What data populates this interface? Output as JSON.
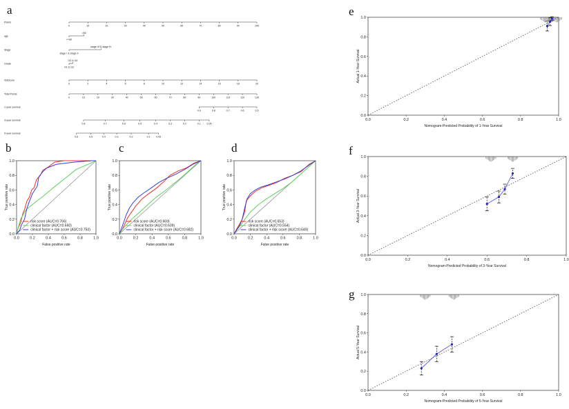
{
  "panel_labels": [
    "a",
    "b",
    "c",
    "d",
    "e",
    "f",
    "g"
  ],
  "chart_data": [
    {
      "panel": "a",
      "type": "nomogram",
      "rows": [
        {
          "name": "Points",
          "kind": "scale",
          "range": [
            0,
            100
          ],
          "ticks": [
            "0",
            "10",
            "20",
            "30",
            "40",
            "50",
            "60",
            "70",
            "80",
            "90",
            "100"
          ]
        },
        {
          "name": "age",
          "kind": "factor",
          "levels": [
            {
              "label": ">60",
              "points": 8
            },
            {
              "label": "<=60",
              "points": 0
            }
          ]
        },
        {
          "name": "Stage",
          "kind": "factor",
          "levels": [
            {
              "label": "stage III & stage IV",
              "points": 17
            },
            {
              "label": "stage I & stage II",
              "points": 0
            }
          ]
        },
        {
          "name": "Grade",
          "kind": "factor",
          "levels": [
            {
              "label": "G3 & G4",
              "points": 2
            },
            {
              "label": "G1 & G2",
              "points": 0
            }
          ]
        },
        {
          "name": "riskScore",
          "kind": "scale",
          "range": [
            0,
            20
          ],
          "ticks": [
            "0",
            "2",
            "4",
            "6",
            "8",
            "10",
            "12",
            "14",
            "16",
            "18",
            "20"
          ]
        },
        {
          "name": "Total Points",
          "kind": "scale",
          "range": [
            0,
            130
          ],
          "ticks": [
            "0",
            "10",
            "20",
            "30",
            "40",
            "50",
            "60",
            "70",
            "80",
            "90",
            "100",
            "110",
            "120",
            "130"
          ]
        },
        {
          "name": "1-year survival",
          "kind": "prob",
          "ticks": [
            "0.9",
            "0.8",
            "0.7",
            "0.6",
            "0.5"
          ],
          "points_at": [
            90,
            100,
            110,
            120,
            130
          ]
        },
        {
          "name": "3-year survival",
          "kind": "prob",
          "ticks": [
            "0.8",
            "0.7",
            "0.6",
            "0.5",
            "0.4",
            "0.3",
            "0.2",
            "0.1",
            "0.05"
          ],
          "points_at": [
            10,
            25,
            38,
            49,
            60,
            70,
            80,
            90,
            97
          ]
        },
        {
          "name": "5-year survival",
          "kind": "prob",
          "ticks": [
            "0.6",
            "0.5",
            "0.4",
            "0.3",
            "0.2",
            "0.1",
            "0.05"
          ],
          "points_at": [
            5,
            15,
            24,
            33,
            43,
            55,
            62
          ]
        }
      ]
    },
    {
      "panel": "b",
      "type": "roc",
      "xlabel": "False positive rate",
      "ylabel": "True positive rate",
      "ticks": [
        "0.0",
        "0.2",
        "0.4",
        "0.6",
        "0.8",
        "1.0"
      ],
      "series": [
        {
          "name": "risk score (AUC=0.766)",
          "color": "#e8302c",
          "points": [
            [
              0,
              0
            ],
            [
              0.02,
              0.08
            ],
            [
              0.05,
              0.15
            ],
            [
              0.08,
              0.28
            ],
            [
              0.1,
              0.33
            ],
            [
              0.13,
              0.45
            ],
            [
              0.16,
              0.5
            ],
            [
              0.19,
              0.6
            ],
            [
              0.22,
              0.63
            ],
            [
              0.25,
              0.74
            ],
            [
              0.3,
              0.8
            ],
            [
              0.33,
              0.87
            ],
            [
              0.38,
              0.9
            ],
            [
              0.48,
              0.98
            ],
            [
              0.6,
              1
            ],
            [
              1,
              1
            ]
          ]
        },
        {
          "name": "clinical factor (AUC=0.660)",
          "color": "#5cd15c",
          "points": [
            [
              0,
              0
            ],
            [
              0.05,
              0.2
            ],
            [
              0.12,
              0.33
            ],
            [
              0.22,
              0.42
            ],
            [
              0.32,
              0.5
            ],
            [
              0.45,
              0.62
            ],
            [
              0.6,
              0.75
            ],
            [
              0.75,
              0.88
            ],
            [
              0.9,
              0.95
            ],
            [
              1,
              1
            ]
          ]
        },
        {
          "name": "clinical factor + risk score (AUC=0.750)",
          "color": "#3a3ad8",
          "points": [
            [
              0,
              0
            ],
            [
              0.04,
              0.05
            ],
            [
              0.06,
              0.12
            ],
            [
              0.1,
              0.2
            ],
            [
              0.13,
              0.35
            ],
            [
              0.16,
              0.44
            ],
            [
              0.2,
              0.55
            ],
            [
              0.23,
              0.6
            ],
            [
              0.26,
              0.65
            ],
            [
              0.28,
              0.78
            ],
            [
              0.33,
              0.85
            ],
            [
              0.38,
              0.9
            ],
            [
              0.5,
              0.95
            ],
            [
              0.72,
              0.98
            ],
            [
              0.95,
              1
            ],
            [
              1,
              1
            ]
          ]
        }
      ]
    },
    {
      "panel": "c",
      "type": "roc",
      "xlabel": "False positive rate",
      "ylabel": "True positive rate",
      "ticks": [
        "0.0",
        "0.2",
        "0.4",
        "0.6",
        "0.8",
        "1.0"
      ],
      "series": [
        {
          "name": "risk score (AUC=0.669)",
          "color": "#e8302c",
          "points": [
            [
              0,
              0
            ],
            [
              0.03,
              0.05
            ],
            [
              0.06,
              0.12
            ],
            [
              0.1,
              0.22
            ],
            [
              0.15,
              0.3
            ],
            [
              0.2,
              0.38
            ],
            [
              0.28,
              0.48
            ],
            [
              0.36,
              0.55
            ],
            [
              0.45,
              0.62
            ],
            [
              0.55,
              0.72
            ],
            [
              0.62,
              0.8
            ],
            [
              0.72,
              0.86
            ],
            [
              0.82,
              0.9
            ],
            [
              0.92,
              0.97
            ],
            [
              1,
              1
            ]
          ]
        },
        {
          "name": "clinical factor (AUC=0.609)",
          "color": "#5cd15c",
          "points": [
            [
              0,
              0
            ],
            [
              0.05,
              0.08
            ],
            [
              0.15,
              0.2
            ],
            [
              0.25,
              0.3
            ],
            [
              0.35,
              0.4
            ],
            [
              0.45,
              0.5
            ],
            [
              0.55,
              0.58
            ],
            [
              0.65,
              0.67
            ],
            [
              0.75,
              0.76
            ],
            [
              0.85,
              0.86
            ],
            [
              0.95,
              0.96
            ],
            [
              1,
              1
            ]
          ]
        },
        {
          "name": "clinical factor + risk score (AUC=0.682)",
          "color": "#3a3ad8",
          "points": [
            [
              0,
              0
            ],
            [
              0.02,
              0.06
            ],
            [
              0.05,
              0.15
            ],
            [
              0.08,
              0.25
            ],
            [
              0.12,
              0.35
            ],
            [
              0.17,
              0.43
            ],
            [
              0.23,
              0.5
            ],
            [
              0.3,
              0.56
            ],
            [
              0.38,
              0.62
            ],
            [
              0.48,
              0.7
            ],
            [
              0.58,
              0.76
            ],
            [
              0.7,
              0.82
            ],
            [
              0.8,
              0.88
            ],
            [
              0.9,
              0.95
            ],
            [
              1,
              1
            ]
          ]
        }
      ]
    },
    {
      "panel": "d",
      "type": "roc",
      "xlabel": "False positive rate",
      "ylabel": "True positive rate",
      "ticks": [
        "0.0",
        "0.2",
        "0.4",
        "0.6",
        "0.8",
        "1.0"
      ],
      "series": [
        {
          "name": "risk score (AUC=0.653)",
          "color": "#e8302c",
          "points": [
            [
              0,
              0
            ],
            [
              0.03,
              0.06
            ],
            [
              0.07,
              0.14
            ],
            [
              0.1,
              0.2
            ],
            [
              0.13,
              0.3
            ],
            [
              0.15,
              0.45
            ],
            [
              0.2,
              0.52
            ],
            [
              0.26,
              0.58
            ],
            [
              0.34,
              0.63
            ],
            [
              0.42,
              0.66
            ],
            [
              0.52,
              0.7
            ],
            [
              0.62,
              0.76
            ],
            [
              0.72,
              0.8
            ],
            [
              0.82,
              0.85
            ],
            [
              0.92,
              0.95
            ],
            [
              1,
              1
            ]
          ]
        },
        {
          "name": "clinical factor (AUC=0.554)",
          "color": "#5cd15c",
          "points": [
            [
              0,
              0
            ],
            [
              0.1,
              0.15
            ],
            [
              0.2,
              0.3
            ],
            [
              0.3,
              0.4
            ],
            [
              0.4,
              0.48
            ],
            [
              0.5,
              0.55
            ],
            [
              0.6,
              0.62
            ],
            [
              0.7,
              0.7
            ],
            [
              0.8,
              0.8
            ],
            [
              0.9,
              0.9
            ],
            [
              1,
              1
            ]
          ]
        },
        {
          "name": "clinical factor + risk score (AUC=0.649)",
          "color": "#3a3ad8",
          "points": [
            [
              0,
              0
            ],
            [
              0.03,
              0.05
            ],
            [
              0.07,
              0.12
            ],
            [
              0.1,
              0.2
            ],
            [
              0.13,
              0.35
            ],
            [
              0.16,
              0.48
            ],
            [
              0.2,
              0.55
            ],
            [
              0.26,
              0.6
            ],
            [
              0.33,
              0.64
            ],
            [
              0.42,
              0.67
            ],
            [
              0.52,
              0.71
            ],
            [
              0.62,
              0.75
            ],
            [
              0.72,
              0.8
            ],
            [
              0.82,
              0.86
            ],
            [
              0.92,
              0.94
            ],
            [
              1,
              1
            ]
          ]
        }
      ]
    },
    {
      "panel": "e",
      "type": "calibration",
      "xlabel": "Nomogram-Predicted Probability of 1-Year Survival",
      "ylabel": "Actual 1-Year Survival",
      "ticks": [
        "0.0",
        "0.2",
        "0.4",
        "0.6",
        "0.8",
        "1.0"
      ],
      "points": [
        [
          0.94,
          0.91
        ],
        [
          0.955,
          0.955
        ],
        [
          0.965,
          0.985
        ]
      ],
      "errors": [
        0.05,
        0.04,
        0.02
      ],
      "rug": [
        0.93,
        0.96,
        0.99
      ]
    },
    {
      "panel": "f",
      "type": "calibration",
      "xlabel": "Nomogram-Predicted Probability of 3-Year Survival",
      "ylabel": "Actual 3-Year Survival",
      "ticks": [
        "0.0",
        "0.2",
        "0.4",
        "0.6",
        "0.8",
        "1.0"
      ],
      "points": [
        [
          0.6,
          0.52
        ],
        [
          0.66,
          0.59
        ],
        [
          0.69,
          0.67
        ],
        [
          0.73,
          0.83
        ]
      ],
      "errors": [
        0.07,
        0.06,
        0.05,
        0.05
      ],
      "rug": [
        0.62,
        0.73
      ]
    },
    {
      "panel": "g",
      "type": "calibration",
      "xlabel": "Nomogram-Predicted Probability of 5-Year Survival",
      "ylabel": "Actual 5-Year Survival",
      "ticks": [
        "0.0",
        "0.2",
        "0.4",
        "0.6",
        "0.8",
        "1.0"
      ],
      "points": [
        [
          0.28,
          0.23
        ],
        [
          0.36,
          0.38
        ],
        [
          0.44,
          0.48
        ]
      ],
      "errors": [
        0.07,
        0.08,
        0.08
      ],
      "rug": [
        0.3,
        0.45
      ]
    }
  ]
}
